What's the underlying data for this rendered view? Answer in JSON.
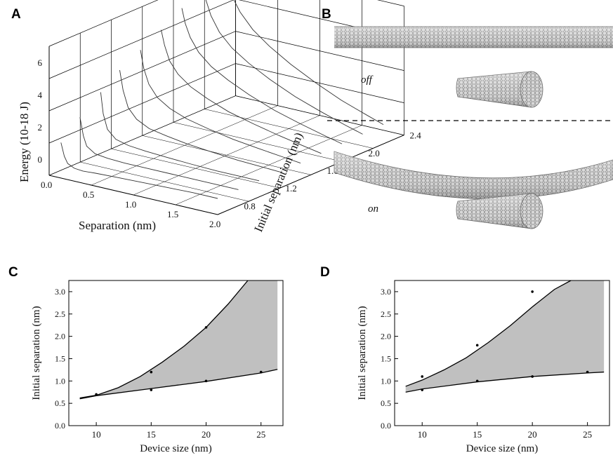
{
  "panels": {
    "a": {
      "label": "A"
    },
    "b": {
      "label": "B",
      "off_label": "off",
      "on_label": "on"
    },
    "c": {
      "label": "C"
    },
    "d": {
      "label": "D"
    }
  },
  "chart_data": [
    {
      "id": "A",
      "type": "line",
      "projection": "3d-waterfall",
      "zlabel": "Energy (10-18 J)",
      "xlabel": "Separation (nm)",
      "ylabel": "Initial separation (nm)",
      "x_ticks": [
        "0.0",
        "0.5",
        "1.0",
        "1.5",
        "2.0"
      ],
      "y_ticks": [
        "0.8",
        "1.2",
        "1.6",
        "2.0",
        "2.4"
      ],
      "z_ticks": [
        "0",
        "2",
        "4",
        "6"
      ],
      "xlim": [
        0,
        2.0
      ],
      "ylim": [
        0.6,
        2.4
      ],
      "zlim": [
        -1,
        7
      ],
      "grid": true,
      "series": [
        {
          "initial_separation": 0.6,
          "x": [
            0.14,
            0.18,
            0.22,
            0.3,
            0.4,
            0.55,
            0.8,
            1.1,
            1.4,
            1.7,
            2.0
          ],
          "z": [
            1.2,
            0.4,
            0.0,
            -0.2,
            -0.25,
            -0.2,
            -0.15,
            -0.1,
            -0.05,
            0.0,
            0.0
          ]
        },
        {
          "initial_separation": 0.8,
          "x": [
            0.12,
            0.16,
            0.2,
            0.3,
            0.45,
            0.65,
            0.9,
            1.2,
            1.5,
            1.8,
            2.0
          ],
          "z": [
            2.2,
            1.1,
            0.5,
            0.15,
            0.05,
            0.0,
            0.0,
            0.0,
            0.0,
            0.0,
            0.0
          ]
        },
        {
          "initial_separation": 1.0,
          "x": [
            0.12,
            0.15,
            0.2,
            0.3,
            0.45,
            0.65,
            0.9,
            1.2,
            1.5,
            1.8,
            2.0
          ],
          "z": [
            3.2,
            1.9,
            1.0,
            0.5,
            0.3,
            0.2,
            0.12,
            0.05,
            0.0,
            0.0,
            0.0
          ]
        },
        {
          "initial_separation": 1.2,
          "x": [
            0.1,
            0.14,
            0.2,
            0.3,
            0.45,
            0.65,
            0.9,
            1.2,
            1.5,
            1.8,
            2.0
          ],
          "z": [
            4.0,
            2.8,
            1.8,
            1.2,
            0.8,
            0.6,
            0.4,
            0.25,
            0.12,
            0.05,
            0.0
          ]
        },
        {
          "initial_separation": 1.4,
          "x": [
            0.1,
            0.14,
            0.2,
            0.3,
            0.45,
            0.65,
            0.9,
            1.2,
            1.5,
            1.8,
            2.0
          ],
          "z": [
            4.7,
            3.6,
            2.7,
            2.0,
            1.5,
            1.1,
            0.8,
            0.5,
            0.3,
            0.12,
            0.0
          ]
        },
        {
          "initial_separation": 1.6,
          "x": [
            0.1,
            0.14,
            0.2,
            0.3,
            0.45,
            0.65,
            0.9,
            1.2,
            1.5,
            1.8,
            2.0
          ],
          "z": [
            5.4,
            4.5,
            3.6,
            2.9,
            2.3,
            1.8,
            1.3,
            0.9,
            0.55,
            0.25,
            0.05
          ]
        },
        {
          "initial_separation": 1.8,
          "x": [
            0.1,
            0.14,
            0.2,
            0.3,
            0.45,
            0.65,
            0.9,
            1.2,
            1.5,
            1.8,
            2.0
          ],
          "z": [
            6.2,
            5.3,
            4.5,
            3.7,
            3.0,
            2.4,
            1.8,
            1.2,
            0.75,
            0.35,
            0.1
          ]
        },
        {
          "initial_separation": 2.0,
          "x": [
            0.1,
            0.14,
            0.2,
            0.3,
            0.45,
            0.65,
            0.9,
            1.2,
            1.5,
            1.8,
            2.0
          ],
          "z": [
            7.0,
            6.2,
            5.3,
            4.4,
            3.6,
            2.9,
            2.2,
            1.5,
            0.95,
            0.45,
            0.15
          ]
        },
        {
          "initial_separation": 2.2,
          "x": [
            0.1,
            0.14,
            0.2,
            0.3,
            0.45,
            0.65,
            0.9,
            1.2,
            1.5,
            1.8,
            2.0
          ],
          "z": [
            7.6,
            6.9,
            6.0,
            5.1,
            4.2,
            3.4,
            2.6,
            1.8,
            1.1,
            0.55,
            0.2
          ]
        }
      ]
    },
    {
      "id": "C",
      "type": "area",
      "xlabel": "Device size (nm)",
      "ylabel": "Initial separation (nm)",
      "xlim": [
        7.5,
        27
      ],
      "ylim": [
        0,
        3.25
      ],
      "x_ticks": [
        10,
        15,
        20,
        25
      ],
      "y_ticks": [
        "0.0",
        "0.5",
        "1.0",
        "1.5",
        "2.0",
        "2.5",
        "3.0"
      ],
      "fill_color": "#c0c0c0",
      "upper_curve": {
        "x": [
          8.5,
          10,
          12,
          14,
          16,
          18,
          20,
          22,
          23.8
        ],
        "y": [
          0.62,
          0.68,
          0.85,
          1.1,
          1.42,
          1.78,
          2.2,
          2.72,
          3.25
        ]
      },
      "lower_curve": {
        "x": [
          8.5,
          10,
          15,
          20,
          25,
          26.5
        ],
        "y": [
          0.6,
          0.67,
          0.83,
          0.99,
          1.18,
          1.26
        ]
      },
      "fill_right_x": 26.5,
      "points": [
        {
          "x": 10,
          "y": 0.7
        },
        {
          "x": 15,
          "y": 1.2
        },
        {
          "x": 20,
          "y": 2.2
        },
        {
          "x": 15,
          "y": 0.8
        },
        {
          "x": 20,
          "y": 1.0
        },
        {
          "x": 25,
          "y": 1.2
        }
      ]
    },
    {
      "id": "D",
      "type": "area",
      "xlabel": "Device size (nm)",
      "ylabel": "Initial separation (nm)",
      "xlim": [
        7.5,
        27
      ],
      "ylim": [
        0,
        3.25
      ],
      "x_ticks": [
        10,
        15,
        20,
        25
      ],
      "y_ticks": [
        "0.0",
        "0.5",
        "1.0",
        "1.5",
        "2.0",
        "2.5",
        "3.0"
      ],
      "fill_color": "#c0c0c0",
      "upper_curve": {
        "x": [
          8.5,
          10,
          12,
          14,
          16,
          18,
          20,
          22,
          23.5
        ],
        "y": [
          0.88,
          1.02,
          1.25,
          1.52,
          1.86,
          2.24,
          2.66,
          3.05,
          3.25
        ]
      },
      "lower_curve": {
        "x": [
          8.5,
          10,
          15,
          20,
          25,
          26.5
        ],
        "y": [
          0.75,
          0.82,
          0.98,
          1.1,
          1.18,
          1.2
        ]
      },
      "fill_right_x": 26.5,
      "points": [
        {
          "x": 10,
          "y": 1.1
        },
        {
          "x": 15,
          "y": 1.8
        },
        {
          "x": 20,
          "y": 3.0
        },
        {
          "x": 10,
          "y": 0.8
        },
        {
          "x": 15,
          "y": 1.0
        },
        {
          "x": 20,
          "y": 1.1
        },
        {
          "x": 25,
          "y": 1.2
        }
      ]
    }
  ]
}
